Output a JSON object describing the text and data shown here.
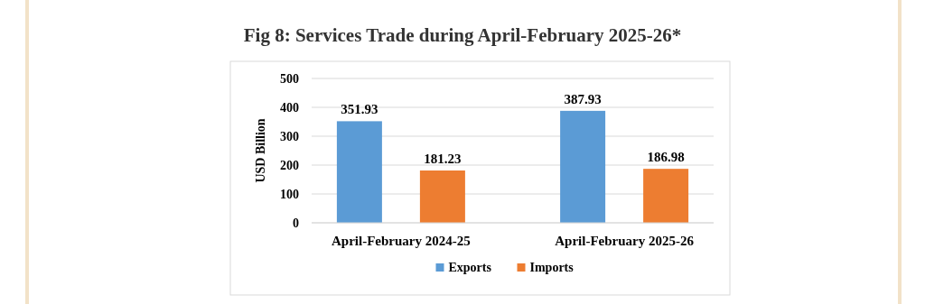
{
  "chart_data": {
    "type": "bar",
    "title": "Fig 8: Services Trade during April-February 2025-26*",
    "ylabel": "USD Billion",
    "categories": [
      "April-February 2024-25",
      "April-February 2025-26"
    ],
    "series": [
      {
        "name": "Exports",
        "color": "#5b9bd5",
        "values": [
          351.93,
          387.93
        ]
      },
      {
        "name": "Imports",
        "color": "#ed7d31",
        "values": [
          181.23,
          186.98
        ]
      }
    ],
    "ylim": [
      0,
      500
    ],
    "yticks": [
      0,
      100,
      200,
      300,
      400,
      500
    ],
    "grid": "y",
    "legend": "bottom",
    "data_labels": true
  }
}
